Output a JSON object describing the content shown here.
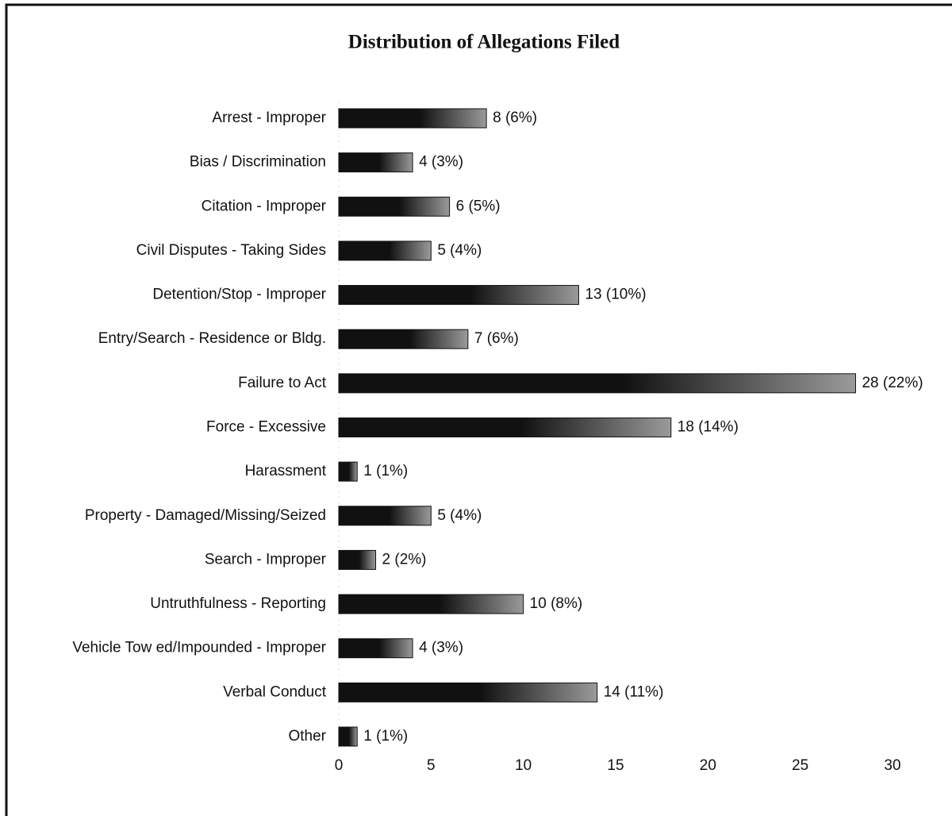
{
  "chart_data": {
    "type": "bar",
    "orientation": "horizontal",
    "title": "Distribution of Allegations Filed",
    "categories": [
      "Arrest - Improper",
      "Bias / Discrimination",
      "Citation - Improper",
      "Civil Disputes - Taking Sides",
      "Detention/Stop - Improper",
      "Entry/Search - Residence or Bldg.",
      "Failure to Act",
      "Force - Excessive",
      "Harassment",
      "Property - Damaged/Missing/Seized",
      "Search - Improper",
      "Untruthfulness - Reporting",
      "Vehicle Tow ed/Impounded - Improper",
      "Verbal Conduct",
      "Other"
    ],
    "values": [
      8,
      4,
      6,
      5,
      13,
      7,
      28,
      18,
      1,
      5,
      2,
      10,
      4,
      14,
      1
    ],
    "value_labels": [
      "8 (6%)",
      "4 (3%)",
      "6 (5%)",
      "5 (4%)",
      "13 (10%)",
      "7 (6%)",
      "28 (22%)",
      "18 (14%)",
      "1 (1%)",
      "5 (4%)",
      "2 (2%)",
      "10 (8%)",
      "4 (3%)",
      "14 (11%)",
      "1 (1%)"
    ],
    "color": "#111111",
    "xlim": [
      0,
      30
    ],
    "xticks": [
      0,
      5,
      10,
      15,
      20,
      25,
      30
    ],
    "grid": false
  }
}
